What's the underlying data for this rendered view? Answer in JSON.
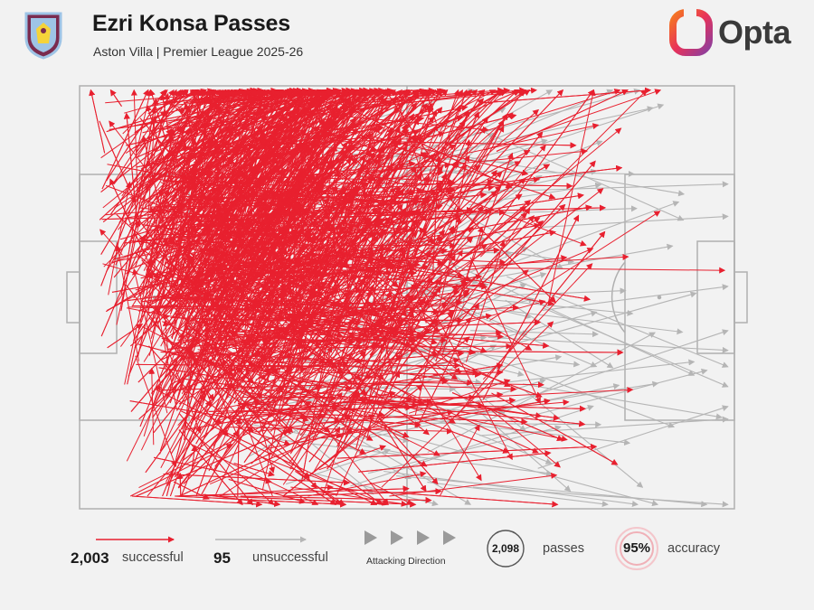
{
  "header": {
    "title": "Ezri Konsa Passes",
    "subtitle": "Aston Villa | Premier League 2025-26",
    "brand": "Opta",
    "club_crest_icon": "aston-villa-crest-icon"
  },
  "legend": {
    "successful_count": "2,003",
    "successful_label": "successful",
    "unsuccessful_count": "95",
    "unsuccessful_label": "unsuccessful",
    "direction_label": "Attacking Direction",
    "passes_count": "2,098",
    "passes_label": "passes",
    "accuracy_value": "95%",
    "accuracy_label": "accuracy"
  },
  "colors": {
    "background": "#f2f2f2",
    "successful": "#e8202f",
    "unsuccessful": "#b5b5b5",
    "pitch_lines": "#b0b0b0",
    "brand_gradient": [
      "#f25c2a",
      "#b0327a"
    ]
  },
  "chart_data": {
    "type": "pass_map",
    "pitch_dimensions_m": [
      105,
      68
    ],
    "attacking_direction": "left-to-right",
    "totals": {
      "passes": 2098,
      "successful": 2003,
      "unsuccessful": 95,
      "accuracy_pct": 95
    },
    "series": [
      {
        "name": "successful",
        "count": 2003,
        "color": "#e8202f"
      },
      {
        "name": "unsuccessful",
        "count": 95,
        "color": "#b5b5b5"
      }
    ]
  }
}
